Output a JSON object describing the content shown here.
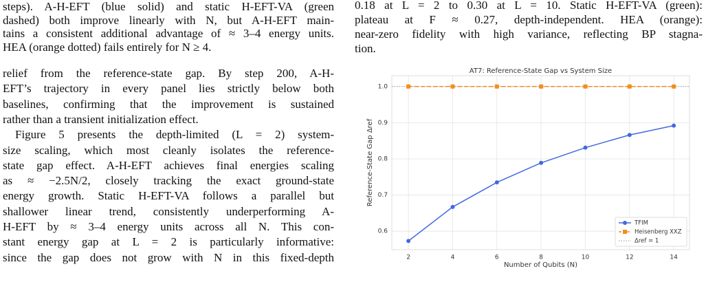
{
  "left_caption": [
    "steps). A-H-EFT (blue solid) and static H-EFT-VA (green",
    "dashed) both improve linearly with N, but A-H-EFT main-",
    "tains a consistent additional advantage of ≈ 3–4 energy units.",
    "HEA (orange dotted) fails entirely for N ≥ 4."
  ],
  "left_body": [
    "relief from the reference-state gap. By step 200, A-H-",
    "EFT’s trajectory in every panel lies strictly below both",
    "baselines, confirming that the improvement is sustained",
    "rather than a transient initialization effect.",
    "Figure 5 presents the depth-limited (L = 2) system-",
    "size scaling, which most cleanly isolates the reference-",
    "state gap effect. A-H-EFT achieves final energies scaling",
    "as ≈ −2.5N/2, closely tracking the exact ground-state",
    "energy growth. Static H-EFT-VA follows a parallel but",
    "shallower linear trend, consistently underperforming A-",
    "H-EFT by ≈ 3–4 energy units across all N. This con-",
    "stant energy gap at L = 2 is particularly informative:",
    "since the gap does not grow with N in this fixed-depth"
  ],
  "right_caption": [
    "0.18 at L = 2 to 0.30 at L = 10. Static H-EFT-VA (green):",
    "plateau at F ≈ 0.27, depth-independent. HEA (orange):",
    "near-zero fidelity with high variance, reflecting BP stagna-",
    "tion."
  ],
  "chart_data": {
    "type": "line",
    "title": "AT7: Reference-State Gap vs System Size",
    "xlabel": "Number of Qubits (N)",
    "ylabel": "Reference-State Gap Δref",
    "x": [
      2,
      4,
      6,
      8,
      10,
      12,
      14
    ],
    "series": [
      {
        "name": "TFIM",
        "color": "#4169e1",
        "marker": "circle",
        "dash": "solid",
        "values": [
          0.573,
          0.667,
          0.735,
          0.789,
          0.831,
          0.866,
          0.892
        ]
      },
      {
        "name": "Heisenberg XXZ",
        "color": "#f28e1c",
        "marker": "square",
        "dash": "dashed",
        "values": [
          1,
          1,
          1,
          1,
          1,
          1,
          1
        ]
      }
    ],
    "reference_line": {
      "name": "Δref = 1",
      "value": 1,
      "color": "#999999"
    },
    "xlim": [
      1.25,
      14.71
    ],
    "ylim": [
      0.549,
      1.03
    ],
    "xticks": [
      2,
      4,
      6,
      8,
      10,
      12,
      14
    ],
    "yticks": [
      0.6,
      0.7,
      0.8,
      0.9,
      {
        "value": 1,
        "label": "1.0"
      }
    ],
    "grid": true,
    "legend": "lower right"
  }
}
